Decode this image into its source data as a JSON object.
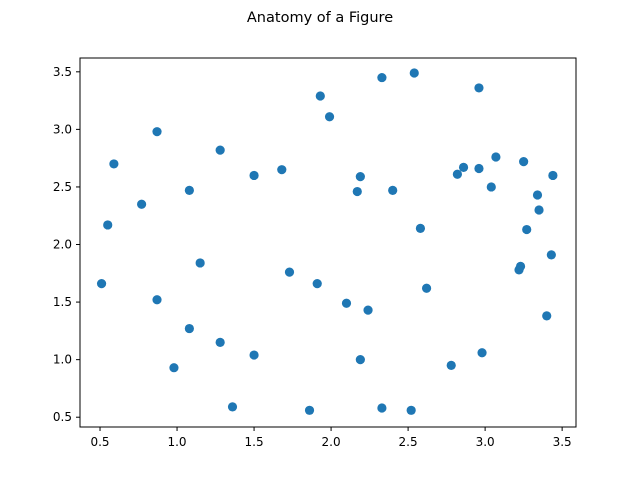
{
  "chart_data": {
    "type": "scatter",
    "title": "Anatomy of a Figure",
    "xlabel": "",
    "ylabel": "",
    "xlim": [
      0.37,
      3.59
    ],
    "ylim": [
      0.415,
      3.62
    ],
    "xticks": [
      0.5,
      1.0,
      1.5,
      2.0,
      2.5,
      3.0,
      3.5
    ],
    "xtick_labels": [
      "0.5",
      "1.0",
      "1.5",
      "2.0",
      "2.5",
      "3.0",
      "3.5"
    ],
    "yticks": [
      0.5,
      1.0,
      1.5,
      2.0,
      2.5,
      3.0,
      3.5
    ],
    "ytick_labels": [
      "0.5",
      "1.0",
      "1.5",
      "2.0",
      "2.5",
      "3.0",
      "3.5"
    ],
    "grid": false,
    "marker_color": "#1f77b4",
    "points": [
      {
        "x": 0.51,
        "y": 1.66
      },
      {
        "x": 0.55,
        "y": 2.17
      },
      {
        "x": 0.59,
        "y": 2.7
      },
      {
        "x": 0.77,
        "y": 2.35
      },
      {
        "x": 0.87,
        "y": 2.98
      },
      {
        "x": 0.87,
        "y": 1.52
      },
      {
        "x": 0.98,
        "y": 0.93
      },
      {
        "x": 1.08,
        "y": 2.47
      },
      {
        "x": 1.08,
        "y": 1.27
      },
      {
        "x": 1.15,
        "y": 1.84
      },
      {
        "x": 1.28,
        "y": 2.82
      },
      {
        "x": 1.28,
        "y": 1.15
      },
      {
        "x": 1.36,
        "y": 0.59
      },
      {
        "x": 1.5,
        "y": 2.6
      },
      {
        "x": 1.5,
        "y": 1.04
      },
      {
        "x": 1.68,
        "y": 2.65
      },
      {
        "x": 1.73,
        "y": 1.76
      },
      {
        "x": 1.86,
        "y": 0.56
      },
      {
        "x": 1.91,
        "y": 1.66
      },
      {
        "x": 1.93,
        "y": 3.29
      },
      {
        "x": 1.99,
        "y": 3.11
      },
      {
        "x": 2.1,
        "y": 1.49
      },
      {
        "x": 2.17,
        "y": 2.46
      },
      {
        "x": 2.19,
        "y": 2.59
      },
      {
        "x": 2.19,
        "y": 1.0
      },
      {
        "x": 2.24,
        "y": 1.43
      },
      {
        "x": 2.33,
        "y": 3.45
      },
      {
        "x": 2.33,
        "y": 0.58
      },
      {
        "x": 2.4,
        "y": 2.47
      },
      {
        "x": 2.52,
        "y": 0.56
      },
      {
        "x": 2.54,
        "y": 3.49
      },
      {
        "x": 2.58,
        "y": 2.14
      },
      {
        "x": 2.62,
        "y": 1.62
      },
      {
        "x": 2.78,
        "y": 0.95
      },
      {
        "x": 2.82,
        "y": 2.61
      },
      {
        "x": 2.86,
        "y": 2.67
      },
      {
        "x": 2.96,
        "y": 3.36
      },
      {
        "x": 2.96,
        "y": 2.66
      },
      {
        "x": 2.98,
        "y": 1.06
      },
      {
        "x": 3.04,
        "y": 2.5
      },
      {
        "x": 3.07,
        "y": 2.76
      },
      {
        "x": 3.22,
        "y": 1.78
      },
      {
        "x": 3.23,
        "y": 1.81
      },
      {
        "x": 3.25,
        "y": 2.72
      },
      {
        "x": 3.27,
        "y": 2.13
      },
      {
        "x": 3.34,
        "y": 2.43
      },
      {
        "x": 3.35,
        "y": 2.3
      },
      {
        "x": 3.4,
        "y": 1.38
      },
      {
        "x": 3.43,
        "y": 1.91
      },
      {
        "x": 3.44,
        "y": 2.6
      }
    ]
  }
}
